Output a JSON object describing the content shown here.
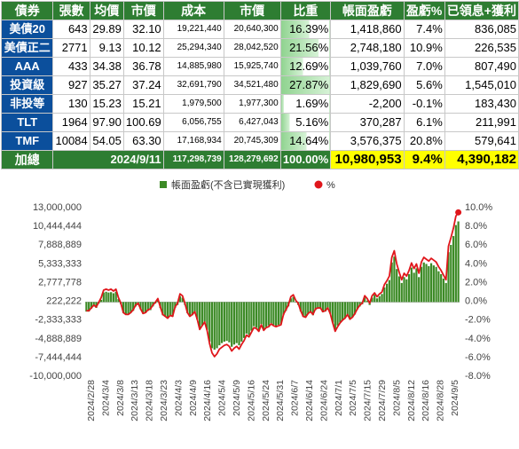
{
  "table": {
    "headers": [
      "債券",
      "張數",
      "均價",
      "市價",
      "成本",
      "市價",
      "比重",
      "帳面盈虧",
      "盈虧%",
      "已領息+獲利"
    ],
    "rows": [
      {
        "name": "美債20",
        "qty": "643",
        "avg": "29.89",
        "price": "32.10",
        "cost": "19,221,440",
        "mv": "20,640,300",
        "weight": "16.39%",
        "weight_value": 16.39,
        "pl": "1,418,860",
        "plpct": "7.4%",
        "income": "836,085"
      },
      {
        "name": "美債正二",
        "qty": "2771",
        "avg": "9.13",
        "price": "10.12",
        "cost": "25,294,340",
        "mv": "28,042,520",
        "weight": "21.56%",
        "weight_value": 21.56,
        "pl": "2,748,180",
        "plpct": "10.9%",
        "income": "226,535"
      },
      {
        "name": "AAA",
        "qty": "433",
        "avg": "34.38",
        "price": "36.78",
        "cost": "14,885,980",
        "mv": "15,925,740",
        "weight": "12.69%",
        "weight_value": 12.69,
        "pl": "1,039,760",
        "plpct": "7.0%",
        "income": "807,490"
      },
      {
        "name": "投資級",
        "qty": "927",
        "avg": "35.27",
        "price": "37.24",
        "cost": "32,691,790",
        "mv": "34,521,480",
        "weight": "27.87%",
        "weight_value": 27.87,
        "pl": "1,829,690",
        "plpct": "5.6%",
        "income": "1,545,010"
      },
      {
        "name": "非投等",
        "qty": "130",
        "avg": "15.23",
        "price": "15.21",
        "cost": "1,979,500",
        "mv": "1,977,300",
        "weight": "1.69%",
        "weight_value": 1.69,
        "pl": "-2,200",
        "plpct": "-0.1%",
        "income": "183,430"
      },
      {
        "name": "TLT",
        "qty": "1964",
        "avg": "97.90",
        "price": "100.69",
        "cost": "6,056,755",
        "mv": "6,427,043",
        "weight": "5.16%",
        "weight_value": 5.16,
        "pl": "370,287",
        "plpct": "6.1%",
        "income": "211,991"
      },
      {
        "name": "TMF",
        "qty": "10084",
        "avg": "54.05",
        "price": "63.30",
        "cost": "17,168,934",
        "mv": "20,745,309",
        "weight": "14.64%",
        "weight_value": 14.64,
        "pl": "3,576,375",
        "plpct": "20.8%",
        "income": "579,641"
      }
    ],
    "total": {
      "label": "加總",
      "date": "2024/9/11",
      "cost": "117,298,739",
      "mv": "128,279,692",
      "weight": "100.00%",
      "pl": "10,980,953",
      "plpct": "9.4%",
      "income": "4,390,182"
    }
  },
  "colors": {
    "header_bg": "#2e7d32",
    "name_bg": "#0b4f9c",
    "bar": "#3c8a26",
    "line": "#e0161b",
    "highlight": "#ffff00"
  },
  "chart_data": {
    "type": "bar",
    "legend": [
      "帳面盈虧(不含已實現獲利)",
      "%"
    ],
    "legend_position": "top-center",
    "y_left_ticks": [
      "13,000,000",
      "10,444,444",
      "7,888,889",
      "5,333,333",
      "2,777,778",
      "222,222",
      "-2,333,333",
      "-4,888,889",
      "-7,444,444",
      "-10,000,000"
    ],
    "y_left_range": [
      -10000000,
      13000000
    ],
    "y_right_ticks": [
      "10.0%",
      "8.0%",
      "6.0%",
      "4.0%",
      "2.0%",
      "0.0%",
      "-2.0%",
      "-4.0%",
      "-6.0%",
      "-8.0%"
    ],
    "y_right_range": [
      -8,
      10
    ],
    "x_ticks": [
      "2024/2/28",
      "2024/3/4",
      "2024/3/8",
      "2024/3/13",
      "2024/3/18",
      "2024/3/23",
      "2024/4/3",
      "2024/4/9",
      "2024/4/16",
      "2024/5/4",
      "2024/5/9",
      "2024/5/16",
      "2024/5/24",
      "2024/5/31",
      "2024/6/7",
      "2024/6/14",
      "2024/6/24",
      "2024/7/1",
      "2024/7/5",
      "2024/7/15",
      "2024/7/29",
      "2024/8/5",
      "2024/8/12",
      "2024/8/16",
      "2024/8/28",
      "2024/9/5"
    ],
    "grid": false,
    "series": [
      {
        "name": "帳面盈虧(不含已實現獲利)",
        "axis": "left",
        "values": [
          -1300000,
          -1300000,
          -900000,
          -600000,
          -800000,
          -200000,
          300000,
          1300000,
          1400000,
          1300000,
          1350000,
          1200000,
          1400000,
          400000,
          -300000,
          -1500000,
          -1700000,
          -1700000,
          -1500000,
          -1200000,
          -600000,
          -400000,
          -1000000,
          -1600000,
          -1500000,
          -1200000,
          -1100000,
          -600000,
          -200000,
          200000,
          -800000,
          -1800000,
          -2000000,
          -2200000,
          -1900000,
          -2000000,
          -800000,
          -400000,
          800000,
          600000,
          -400000,
          -1500000,
          -2000000,
          -1800000,
          -1400000,
          -2400000,
          -3600000,
          -3200000,
          -2700000,
          -3800000,
          -5400000,
          -6300000,
          -6500000,
          -6300000,
          -5900000,
          -5600000,
          -5400000,
          -5300000,
          -5500000,
          -6100000,
          -5800000,
          -5600000,
          -5900000,
          -5400000,
          -4900000,
          -4300000,
          -4500000,
          -3900000,
          -3300000,
          -3500000,
          -3800000,
          -3000000,
          -3700000,
          -3400000,
          -3200000,
          -2900000,
          -3100000,
          -3300000,
          -3100000,
          -3000000,
          -1800000,
          -1200000,
          -600000,
          500000,
          700000,
          0,
          -400000,
          -1300000,
          -2000000,
          -2100000,
          -1600000,
          -1400000,
          -1800000,
          -1100000,
          -900000,
          -900000,
          -1400000,
          -1300000,
          -900000,
          -1600000,
          -2800000,
          -3800000,
          -3200000,
          -2800000,
          -2500000,
          -2200000,
          -1800000,
          -2400000,
          -2100000,
          -1700000,
          -1000000,
          -600000,
          -300000,
          600000,
          200000,
          -400000,
          600000,
          1000000,
          500000,
          800000,
          1100000,
          2000000,
          2500000,
          3000000,
          5400000,
          6200000,
          4500000,
          3500000,
          2600000,
          3400000,
          3100000,
          3800000,
          4700000,
          4000000,
          4600000,
          3400000,
          4800000,
          5400000,
          5200000,
          4900000,
          5300000,
          5000000,
          4800000,
          4200000,
          3800000,
          3200000,
          2600000,
          6800000,
          7800000,
          9000000,
          10500000,
          11000000
        ]
      },
      {
        "name": "%",
        "axis": "right",
        "values": [
          -1.1,
          -1.1,
          -0.8,
          -0.5,
          -0.7,
          -0.2,
          0.3,
          1.1,
          1.2,
          1.1,
          1.2,
          1.0,
          1.2,
          0.3,
          -0.3,
          -1.3,
          -1.5,
          -1.5,
          -1.3,
          -1.0,
          -0.5,
          -0.3,
          -0.9,
          -1.4,
          -1.3,
          -1.0,
          -0.9,
          -0.5,
          -0.2,
          0.2,
          -0.7,
          -1.5,
          -1.7,
          -1.9,
          -1.6,
          -1.7,
          -0.7,
          -0.3,
          0.7,
          0.5,
          -0.3,
          -1.3,
          -1.7,
          -1.5,
          -1.2,
          -2.0,
          -3.1,
          -2.7,
          -2.3,
          -3.2,
          -4.6,
          -5.6,
          -6.0,
          -5.7,
          -5.2,
          -5.0,
          -4.8,
          -4.7,
          -4.9,
          -5.4,
          -5.1,
          -4.9,
          -5.2,
          -4.7,
          -4.3,
          -3.7,
          -3.9,
          -3.4,
          -2.9,
          -3.0,
          -3.3,
          -2.6,
          -3.2,
          -2.9,
          -2.8,
          -2.5,
          -2.7,
          -2.8,
          -2.7,
          -2.6,
          -1.5,
          -1.0,
          -0.5,
          0.4,
          0.6,
          0.0,
          -0.3,
          -1.1,
          -1.7,
          -1.8,
          -1.4,
          -1.2,
          -1.5,
          -0.9,
          -0.8,
          -0.8,
          -1.2,
          -1.1,
          -0.8,
          -1.4,
          -2.4,
          -3.3,
          -2.8,
          -2.4,
          -2.1,
          -1.9,
          -1.5,
          -2.0,
          -1.8,
          -1.4,
          -0.9,
          -0.5,
          -0.3,
          0.5,
          0.2,
          -0.3,
          0.5,
          0.8,
          0.4,
          0.7,
          0.9,
          1.7,
          2.1,
          2.6,
          4.6,
          5.3,
          3.9,
          3.0,
          2.2,
          2.9,
          2.6,
          3.2,
          4.0,
          3.4,
          3.9,
          2.9,
          4.1,
          4.6,
          4.4,
          4.2,
          4.5,
          4.3,
          4.1,
          3.6,
          3.2,
          2.7,
          2.2,
          5.8,
          6.7,
          7.7,
          9.0,
          9.4
        ]
      }
    ]
  }
}
